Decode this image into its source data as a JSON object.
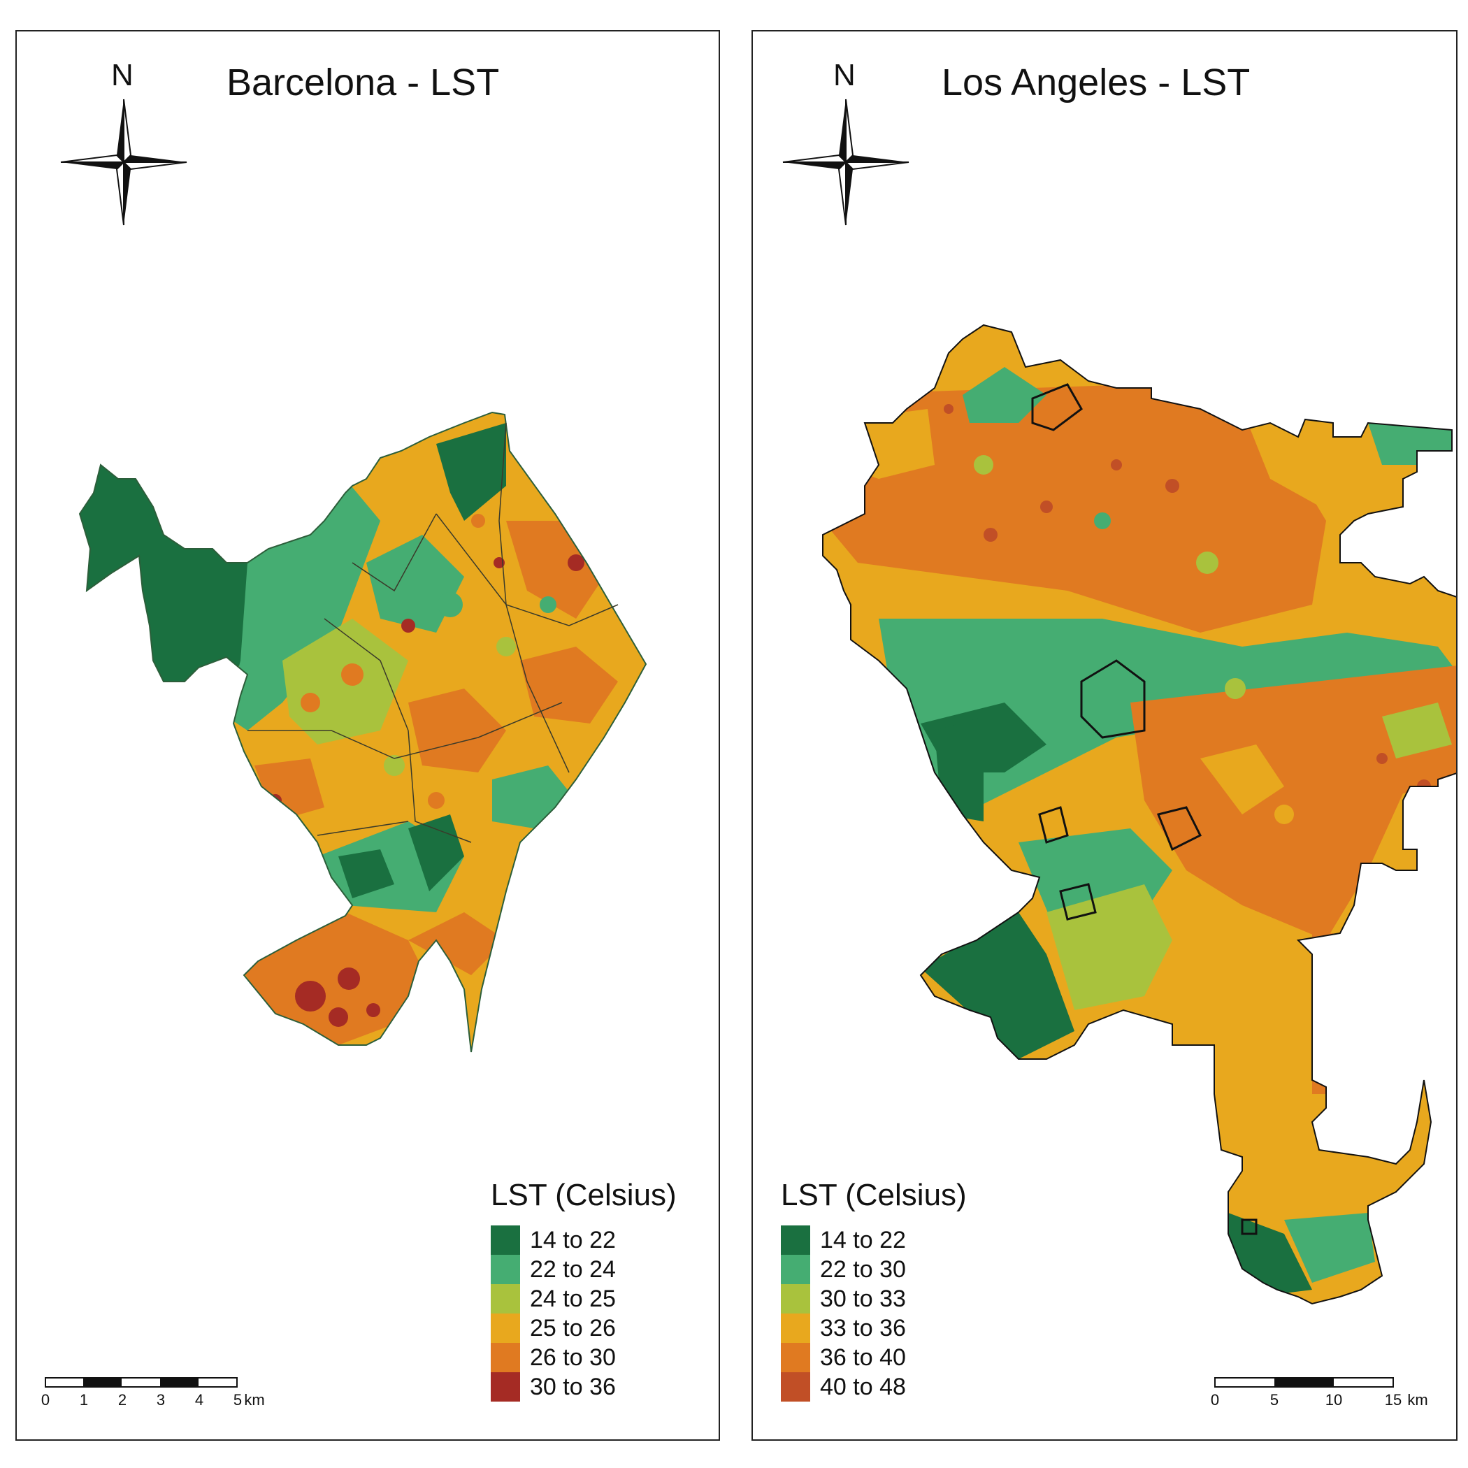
{
  "panels": [
    {
      "title": "Barcelona - LST",
      "north": "N",
      "legend": {
        "title": "LST (Celsius)",
        "classes": [
          {
            "label": "14 to 22",
            "color": "#1a7040"
          },
          {
            "label": "22 to 24",
            "color": "#45ad72"
          },
          {
            "label": "24 to 25",
            "color": "#a9c23d"
          },
          {
            "label": "25 to 26",
            "color": "#e8a81e"
          },
          {
            "label": "26 to 30",
            "color": "#e07a21"
          },
          {
            "label": "30 to 36",
            "color": "#a52b24"
          }
        ]
      },
      "scale": {
        "labels": [
          "0",
          "1",
          "2",
          "3",
          "4",
          "5"
        ],
        "unit": "km"
      }
    },
    {
      "title": "Los Angeles - LST",
      "north": "N",
      "legend": {
        "title": "LST (Celsius)",
        "classes": [
          {
            "label": "14 to 22",
            "color": "#1a7040"
          },
          {
            "label": "22 to 30",
            "color": "#45ad72"
          },
          {
            "label": "30 to 33",
            "color": "#a9c23d"
          },
          {
            "label": "33 to 36",
            "color": "#e8a81e"
          },
          {
            "label": "36 to 40",
            "color": "#e07a21"
          },
          {
            "label": "40 to 48",
            "color": "#c14f26"
          }
        ]
      },
      "scale": {
        "labels": [
          "0",
          "5",
          "10",
          "15"
        ],
        "unit": "km"
      }
    }
  ]
}
